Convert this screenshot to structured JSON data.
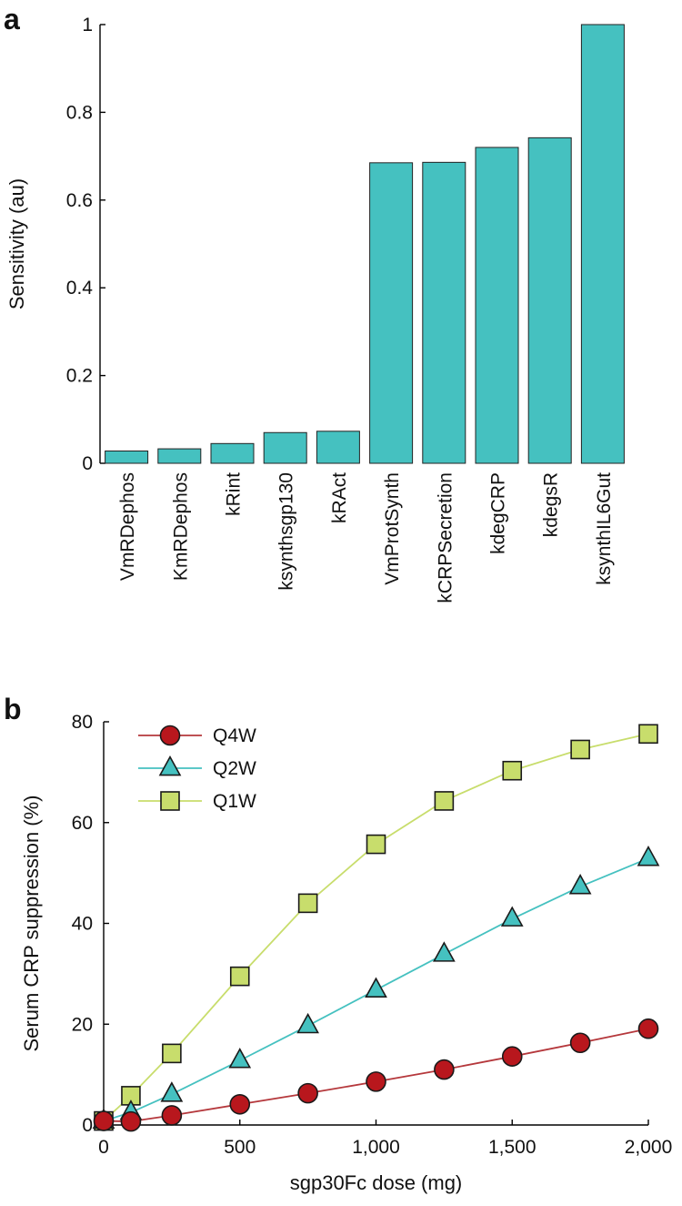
{
  "panel_labels": [
    "a",
    "b"
  ],
  "chart_data": [
    {
      "type": "bar",
      "panel": "a",
      "title": "",
      "xlabel": "",
      "ylabel": "Sensitivity (au)",
      "ylim": [
        0,
        1
      ],
      "yticks": [
        0,
        0.2,
        0.4,
        0.6,
        0.8,
        1
      ],
      "ytick_labels": [
        "0",
        "0.2",
        "0.4",
        "0.6",
        "0.8",
        "1"
      ],
      "categories": [
        "VmRDephos",
        "KmRDephos",
        "kRint",
        "ksynthsgp130",
        "kRAct",
        "VmProtSynth",
        "kCRPSecretion",
        "kdegCRP",
        "kdegsR",
        "ksynthIL6Gut"
      ],
      "values": [
        0.028,
        0.033,
        0.045,
        0.07,
        0.073,
        0.685,
        0.686,
        0.72,
        0.742,
        1.0
      ],
      "color": "#45c1c0",
      "grid": false
    },
    {
      "type": "line",
      "panel": "b",
      "title": "",
      "xlabel": "sgp30Fc dose (mg)",
      "ylabel": "Serum CRP suppression (%)",
      "xlim": [
        0,
        2000
      ],
      "ylim": [
        0,
        80
      ],
      "xticks": [
        0,
        500,
        1000,
        1500,
        2000
      ],
      "xtick_labels": [
        "0",
        "500",
        "1,000",
        "1,500",
        "2,000"
      ],
      "yticks": [
        0,
        20,
        40,
        60,
        80
      ],
      "ytick_labels": [
        "0",
        "20",
        "40",
        "60",
        "80"
      ],
      "legend_position": "top-left",
      "grid": false,
      "series": [
        {
          "name": "Q4W",
          "marker": "circle",
          "line_color": "#b5383c",
          "marker_color": "#b8171d",
          "x": [
            0,
            100,
            250,
            500,
            750,
            1000,
            1250,
            1500,
            1750,
            2000
          ],
          "y": [
            0.8,
            0.7,
            1.9,
            4.1,
            6.3,
            8.6,
            11.0,
            13.6,
            16.3,
            19.1
          ]
        },
        {
          "name": "Q2W",
          "marker": "triangle",
          "line_color": "#45c1c0",
          "marker_color": "#45c1c0",
          "x": [
            0,
            100,
            250,
            500,
            750,
            1000,
            1250,
            1500,
            1750,
            2000
          ],
          "y": [
            0.8,
            2.5,
            6.1,
            12.8,
            19.7,
            26.8,
            33.9,
            40.9,
            47.3,
            52.9
          ]
        },
        {
          "name": "Q1W",
          "marker": "square",
          "line_color": "#c8dd6c",
          "marker_color": "#c8dd6c",
          "x": [
            0,
            100,
            250,
            500,
            750,
            1000,
            1250,
            1500,
            1750,
            2000
          ],
          "y": [
            0.8,
            5.8,
            14.2,
            29.5,
            44.0,
            55.7,
            64.3,
            70.3,
            74.5,
            77.6
          ]
        }
      ]
    }
  ]
}
